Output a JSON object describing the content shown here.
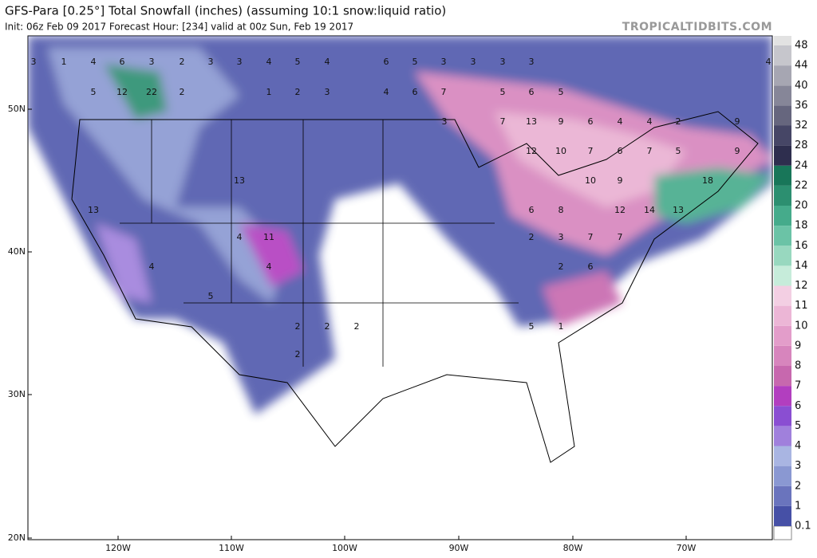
{
  "header": {
    "title": "GFS-Para [0.25°] Total Snowfall (inches) (assuming 10:1 snow:liquid ratio)",
    "subtitle": "Init: 06z Feb 09 2017   Forecast Hour: [234]   valid at 00z Sun, Feb 19 2017",
    "watermark": "TROPICALTIDBITS.COM"
  },
  "lat_labels": [
    "50N",
    "40N",
    "30N",
    "20N"
  ],
  "lon_labels": [
    "120W",
    "110W",
    "100W",
    "90W",
    "80W",
    "70W"
  ],
  "map_labels": [
    "3",
    "1",
    "4",
    "6",
    "3",
    "2",
    "3",
    "3",
    "4",
    "5",
    "4",
    "6",
    "5",
    "3",
    "3",
    "3",
    "3",
    "4",
    "5",
    "12",
    "22",
    "6",
    "7",
    "5",
    "6",
    "5",
    "3",
    "7",
    "13",
    "9",
    "6",
    "4",
    "4",
    "2",
    "9",
    "12",
    "10",
    "7",
    "6",
    "7",
    "5",
    "9",
    "13",
    "10",
    "9",
    "18",
    "13",
    "6",
    "8",
    "12",
    "14",
    "13",
    "4",
    "11",
    "2",
    "3",
    "7",
    "7",
    "4",
    "4",
    "2",
    "6",
    "5",
    "2",
    "2",
    "2",
    "5",
    "1",
    "2",
    "2",
    "1",
    "2",
    "3",
    "4"
  ],
  "colorbar": {
    "levels": [
      "0.1",
      "1",
      "2",
      "3",
      "4",
      "5",
      "6",
      "7",
      "8",
      "9",
      "10",
      "11",
      "12",
      "14",
      "16",
      "18",
      "20",
      "22",
      "24",
      "28",
      "32",
      "36",
      "40",
      "44",
      "48"
    ],
    "colors": [
      "#4650a6",
      "#6a74bd",
      "#8a98d2",
      "#a9b5e2",
      "#a080dc",
      "#8a4ed2",
      "#b23ebf",
      "#c768ae",
      "#d785bd",
      "#e39dca",
      "#ecb6d6",
      "#f3cfe3",
      "#c6ecda",
      "#98d8bf",
      "#6bc3a6",
      "#45ab8b",
      "#2c8f70",
      "#187659",
      "#2e2e4e",
      "#464666",
      "#66667e",
      "#868698",
      "#a6a6b2",
      "#c6c6cc"
    ]
  }
}
